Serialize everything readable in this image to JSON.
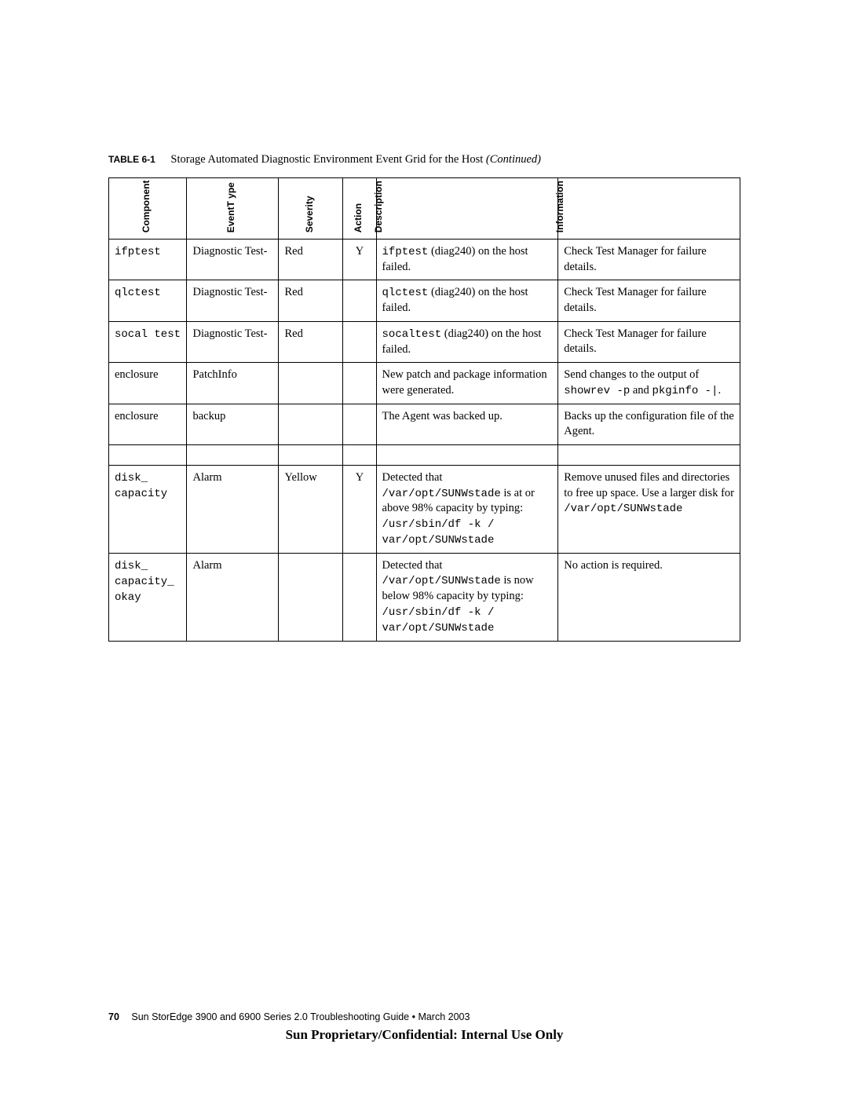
{
  "caption": {
    "label": "TABLE 6-1",
    "text": "Storage Automated Diagnostic Environment Event Grid for the Host ",
    "continued": "(Continued)"
  },
  "headers": [
    "Component",
    "EventT ype",
    "Severity",
    "Action",
    "Description",
    "Information"
  ],
  "rows": [
    {
      "component": [
        {
          "t": "ifptest",
          "mono": true
        }
      ],
      "event": [
        {
          "t": "Diagnostic Test-"
        }
      ],
      "severity": [
        {
          "t": "Red"
        }
      ],
      "action": "Y",
      "description": [
        {
          "t": "ifptest",
          "mono": true
        },
        {
          "t": " (diag240) on the host failed."
        }
      ],
      "information": [
        {
          "t": "Check Test Manager for failure details."
        }
      ]
    },
    {
      "component": [
        {
          "t": "qlctest",
          "mono": true
        }
      ],
      "event": [
        {
          "t": "Diagnostic Test-"
        }
      ],
      "severity": [
        {
          "t": "Red"
        }
      ],
      "action": "",
      "description": [
        {
          "t": "qlctest",
          "mono": true
        },
        {
          "t": " (diag240) on the host failed."
        }
      ],
      "information": [
        {
          "t": "Check Test Manager for failure details."
        }
      ]
    },
    {
      "component": [
        {
          "t": "socal test",
          "mono": true
        }
      ],
      "event": [
        {
          "t": "Diagnostic Test-"
        }
      ],
      "severity": [
        {
          "t": "Red"
        }
      ],
      "action": "",
      "description": [
        {
          "t": "socaltest",
          "mono": true
        },
        {
          "t": " (diag240) on the host failed."
        }
      ],
      "information": [
        {
          "t": "Check Test Manager for failure details."
        }
      ]
    },
    {
      "component": [
        {
          "t": "enclosure"
        }
      ],
      "event": [
        {
          "t": "PatchInfo"
        }
      ],
      "severity": [],
      "action": "",
      "description": [
        {
          "t": "New patch and package information were generated."
        }
      ],
      "information": [
        {
          "t": "Send changes to the output of "
        },
        {
          "t": "showrev -p",
          "mono": true
        },
        {
          "t": " and "
        },
        {
          "t": "pkginfo -|",
          "mono": true
        },
        {
          "t": "."
        }
      ]
    },
    {
      "component": [
        {
          "t": "enclosure"
        }
      ],
      "event": [
        {
          "t": "backup"
        }
      ],
      "severity": [],
      "action": "",
      "description": [
        {
          "t": "The Agent was backed up."
        }
      ],
      "information": [
        {
          "t": "Backs up the configuration file of the Agent."
        }
      ]
    },
    {
      "spacer": true
    },
    {
      "component": [
        {
          "t": "disk_ capacity",
          "mono": true
        }
      ],
      "event": [
        {
          "t": "Alarm"
        }
      ],
      "severity": [
        {
          "t": "Yellow"
        }
      ],
      "action": "Y",
      "description": [
        {
          "t": "Detected that "
        },
        {
          "t": "/var/opt/SUNWstade",
          "mono": true
        },
        {
          "t": " is at or above 98% capacity by typing: "
        },
        {
          "t": "/usr/sbin/df -k / var/opt/SUNWstade",
          "mono": true
        }
      ],
      "information": [
        {
          "t": "Remove unused files and directories to free up space. Use a larger disk for "
        },
        {
          "t": "/var/opt/SUNWstade",
          "mono": true
        }
      ]
    },
    {
      "component": [
        {
          "t": "disk_ capacity_ okay",
          "mono": true
        }
      ],
      "event": [
        {
          "t": "Alarm"
        }
      ],
      "severity": [],
      "action": "",
      "description": [
        {
          "t": "Detected that "
        },
        {
          "t": "/var/opt/SUNWstade",
          "mono": true
        },
        {
          "t": " is now below 98% capacity by typing: "
        },
        {
          "t": "/usr/sbin/df -k / var/opt/SUNWstade",
          "mono": true
        }
      ],
      "information": [
        {
          "t": "No action is required."
        }
      ]
    }
  ],
  "footer": {
    "page_number": "70",
    "doc_title": "Sun StorEdge 3900 and 6900 Series 2.0 Troubleshooting Guide • March 2003",
    "confidential": "Sun Proprietary/Confidential: Internal Use Only"
  }
}
